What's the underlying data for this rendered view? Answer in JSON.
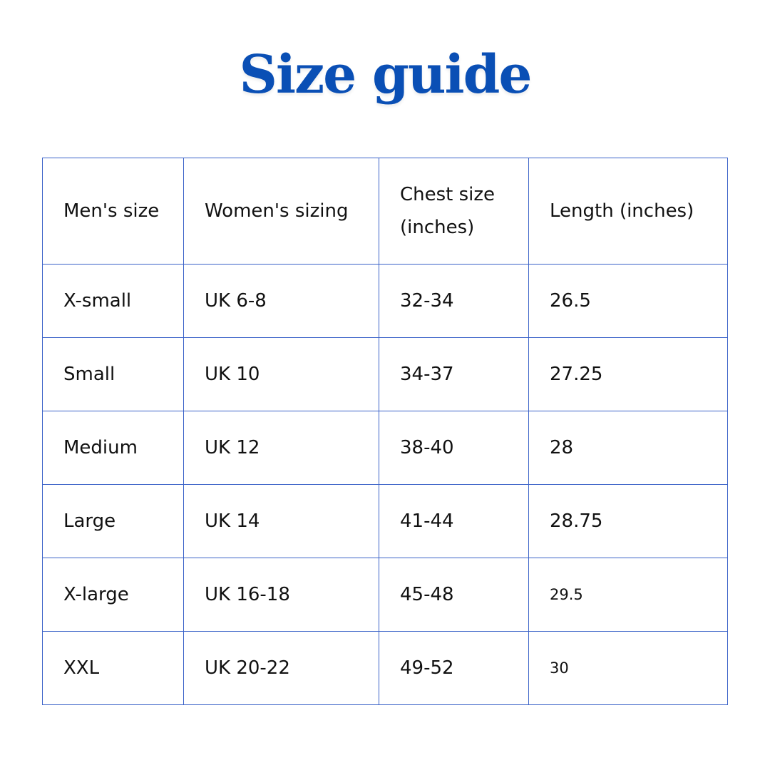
{
  "title": "Size guide",
  "colors": {
    "title": "#0a4fb5",
    "border": "#3a62c8"
  },
  "table": {
    "headers": [
      "Men's size",
      "Women's sizing",
      "Chest size\n(inches)",
      "Length (inches)"
    ],
    "rows": [
      [
        "X-small",
        "UK 6-8",
        "32-34",
        "26.5"
      ],
      [
        "Small",
        "UK 10",
        "34-37",
        "27.25"
      ],
      [
        "Medium",
        "UK 12",
        "38-40",
        "28"
      ],
      [
        "Large",
        "UK 14",
        "41-44",
        "28.75"
      ],
      [
        "X-large",
        "UK 16-18",
        "45-48",
        "29.5"
      ],
      [
        "XXL",
        "UK 20-22",
        "49-52",
        "30"
      ]
    ]
  }
}
